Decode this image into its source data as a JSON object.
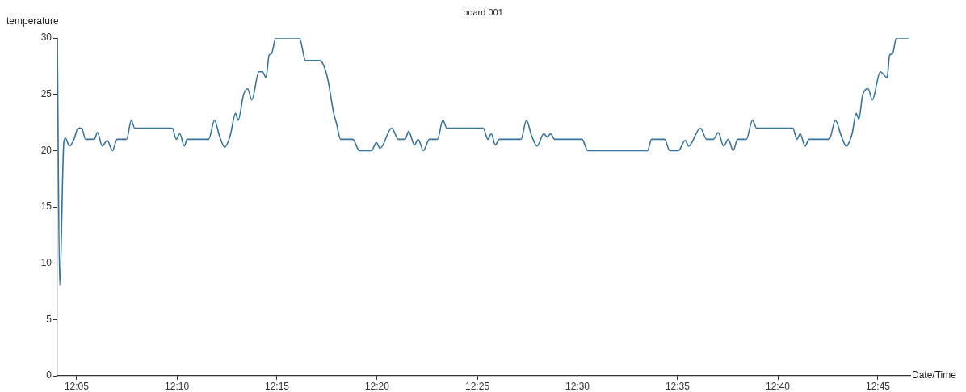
{
  "chart_data": {
    "type": "line",
    "title": "board 001",
    "xlabel": "Date/Time",
    "ylabel": "temperature",
    "x": [
      12.0672,
      12.0692,
      12.0726,
      12.0739,
      12.0773,
      12.0811,
      12.0845,
      12.0874,
      12.0907,
      12.0979,
      12.1006,
      12.1046,
      12.1087,
      12.1131,
      12.1169,
      12.1248,
      12.1288,
      12.1315,
      12.1628,
      12.1662,
      12.1691,
      12.1729,
      12.1752,
      12.1931,
      12.198,
      12.2021,
      12.2065,
      12.211,
      12.2155,
      12.2177,
      12.2222,
      12.2256,
      12.229,
      12.235,
      12.2379,
      12.2408,
      12.2435,
      12.2453,
      12.2491,
      12.2686,
      12.2737,
      12.2856,
      12.2917,
      12.2972,
      12.2995,
      12.3029,
      12.313,
      12.3185,
      12.3286,
      12.3327,
      12.3358,
      12.3454,
      12.351,
      12.3566,
      12.3595,
      12.3644,
      12.3674,
      12.3718,
      12.3768,
      12.3835,
      12.388,
      12.3913,
      12.4216,
      12.4254,
      12.4283,
      12.4316,
      12.435,
      12.453,
      12.4575,
      12.4619,
      12.4664,
      12.472,
      12.4749,
      12.4776,
      12.481,
      12.5038,
      12.5085,
      12.5583,
      12.5616,
      12.5724,
      12.5768,
      12.584,
      12.5896,
      12.5925,
      12.6023,
      12.6075,
      12.6131,
      12.6171,
      12.6216,
      12.6255,
      12.6295,
      12.6333,
      12.6405,
      12.6456,
      12.649,
      12.6792,
      12.6826,
      12.6853,
      12.6893,
      12.6927,
      12.7095,
      12.7146,
      12.7195,
      12.7236,
      12.7285,
      12.7319,
      12.7341,
      12.7374,
      12.7419,
      12.7453,
      12.752,
      12.7576,
      12.7598,
      12.7621,
      12.7654,
      12.7755
    ],
    "series": [
      {
        "color": "#35739f",
        "values": [
          30,
          8,
          20.7,
          21.1,
          20.4,
          21,
          22,
          22,
          21,
          21,
          21.6,
          20.4,
          20.9,
          20,
          21,
          21,
          22.7,
          22,
          22,
          21,
          21.5,
          20.4,
          21,
          21,
          22.7,
          21.3,
          20.3,
          21.3,
          23.3,
          22.7,
          25,
          25.5,
          24.5,
          27,
          27,
          26.5,
          28.5,
          28.6,
          30,
          30,
          28,
          28,
          26.6,
          23.3,
          22.4,
          21,
          21,
          20,
          20,
          20.7,
          20.2,
          22,
          21,
          21,
          21.7,
          20.5,
          21,
          20,
          21,
          21,
          22.7,
          22,
          22,
          21,
          21.5,
          20.5,
          21,
          21,
          22.7,
          21.3,
          20.4,
          21.5,
          21.2,
          21.5,
          21,
          21,
          20,
          20,
          21,
          21,
          20,
          20,
          20.9,
          20.4,
          22,
          21,
          21,
          21.6,
          20.4,
          21,
          20,
          21,
          21,
          22.7,
          22,
          22,
          21,
          21.5,
          20.4,
          21,
          21,
          22.7,
          21.3,
          20.4,
          21.5,
          23.3,
          22.8,
          25,
          25.5,
          24.5,
          27,
          26.5,
          28.5,
          28.6,
          30,
          30
        ]
      }
    ],
    "xlim": [
      12.0672,
      12.7769
    ],
    "xticks": [
      {
        "value": 12.0833,
        "label": "12:05"
      },
      {
        "value": 12.1667,
        "label": "12:10"
      },
      {
        "value": 12.25,
        "label": "12:15"
      },
      {
        "value": 12.3333,
        "label": "12:20"
      },
      {
        "value": 12.4167,
        "label": "12:25"
      },
      {
        "value": 12.5,
        "label": "12:30"
      },
      {
        "value": 12.5833,
        "label": "12:35"
      },
      {
        "value": 12.6667,
        "label": "12:40"
      },
      {
        "value": 12.75,
        "label": "12:45"
      }
    ],
    "ylim": [
      0,
      30
    ],
    "yticks": [
      0,
      5,
      10,
      15,
      20,
      25,
      30
    ],
    "grid": false,
    "legend": false,
    "marker": "none",
    "line_style": "solid"
  }
}
